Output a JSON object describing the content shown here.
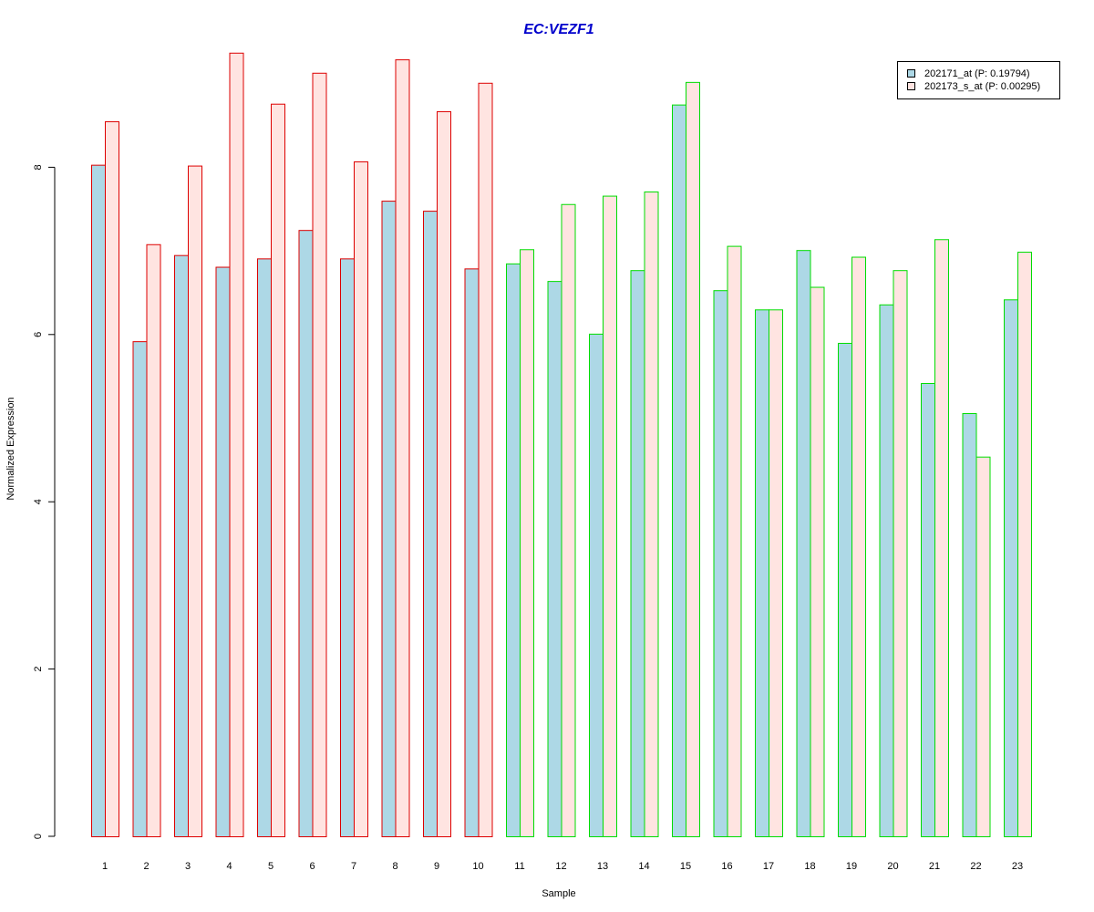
{
  "colors": {
    "title": "#0000cc",
    "series_fill": [
      "#add8e6",
      "#ffe4e1"
    ],
    "group_border": [
      "#dd0000",
      "#00dd00"
    ],
    "axis": "#000000"
  },
  "chart_data": {
    "type": "bar",
    "title": "EC:VEZF1",
    "xlabel": "Sample",
    "ylabel": "Normalized Expression",
    "ylim": [
      0,
      9.5
    ],
    "yticks": [
      0,
      2,
      4,
      6,
      8
    ],
    "grid": false,
    "legend_position": "top-right",
    "categories": [
      "1",
      "2",
      "3",
      "4",
      "5",
      "6",
      "7",
      "8",
      "9",
      "10",
      "11",
      "12",
      "13",
      "14",
      "15",
      "16",
      "17",
      "18",
      "19",
      "20",
      "21",
      "22",
      "23"
    ],
    "group_of_category": [
      "red",
      "red",
      "red",
      "red",
      "red",
      "red",
      "red",
      "red",
      "red",
      "red",
      "green",
      "green",
      "green",
      "green",
      "green",
      "green",
      "green",
      "green",
      "green",
      "green",
      "green",
      "green",
      "green"
    ],
    "series": [
      {
        "name": "202171_at (P: 0.19794)",
        "values": [
          8.03,
          5.92,
          6.95,
          6.81,
          6.91,
          7.25,
          6.91,
          7.6,
          7.48,
          6.79,
          6.85,
          6.64,
          6.01,
          6.77,
          8.75,
          6.53,
          6.3,
          7.01,
          5.9,
          6.36,
          5.42,
          5.06,
          6.42
        ]
      },
      {
        "name": "202173_s_at (P: 0.00295)",
        "values": [
          8.55,
          7.08,
          8.02,
          9.37,
          8.76,
          9.13,
          8.07,
          9.29,
          8.67,
          9.01,
          7.02,
          7.56,
          7.66,
          7.71,
          9.02,
          7.06,
          6.3,
          6.57,
          6.93,
          6.77,
          7.14,
          4.54,
          6.99
        ]
      }
    ]
  }
}
